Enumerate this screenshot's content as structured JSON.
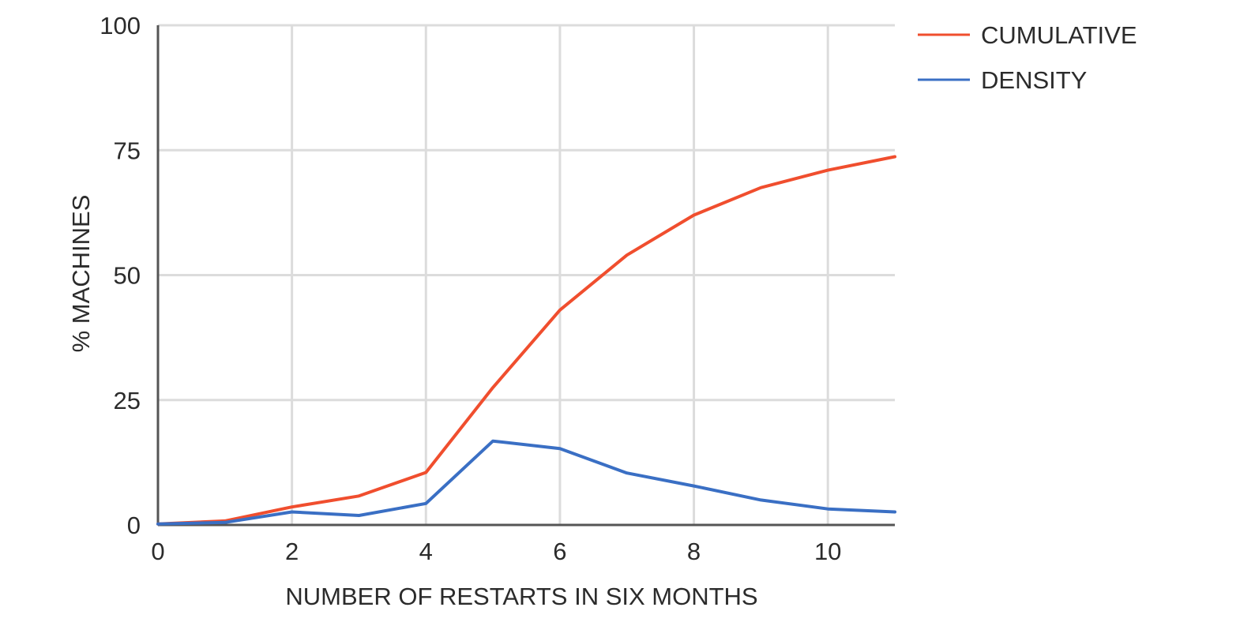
{
  "chart_data": {
    "type": "line",
    "xlabel": "NUMBER OF RESTARTS IN SIX MONTHS",
    "ylabel": "% MACHINES",
    "xlim": [
      0,
      11
    ],
    "ylim": [
      0,
      100
    ],
    "xticks": [
      0,
      2,
      4,
      6,
      8,
      10
    ],
    "yticks": [
      0,
      25,
      50,
      75,
      100
    ],
    "grid": true,
    "legend_position": "top-right",
    "x": [
      0,
      1,
      2,
      3,
      4,
      5,
      6,
      7,
      8,
      9,
      10,
      11
    ],
    "series": [
      {
        "name": "CUMULATIVE",
        "color": "#f04e2e",
        "values": [
          0.2,
          0.8,
          3.6,
          5.8,
          10.5,
          27.5,
          43,
          54,
          62,
          67.5,
          71,
          73.7
        ]
      },
      {
        "name": "DENSITY",
        "color": "#3a6fc4",
        "values": [
          0.2,
          0.5,
          2.6,
          1.9,
          4.3,
          16.8,
          15.3,
          10.4,
          7.8,
          5,
          3.2,
          2.6
        ]
      }
    ]
  }
}
